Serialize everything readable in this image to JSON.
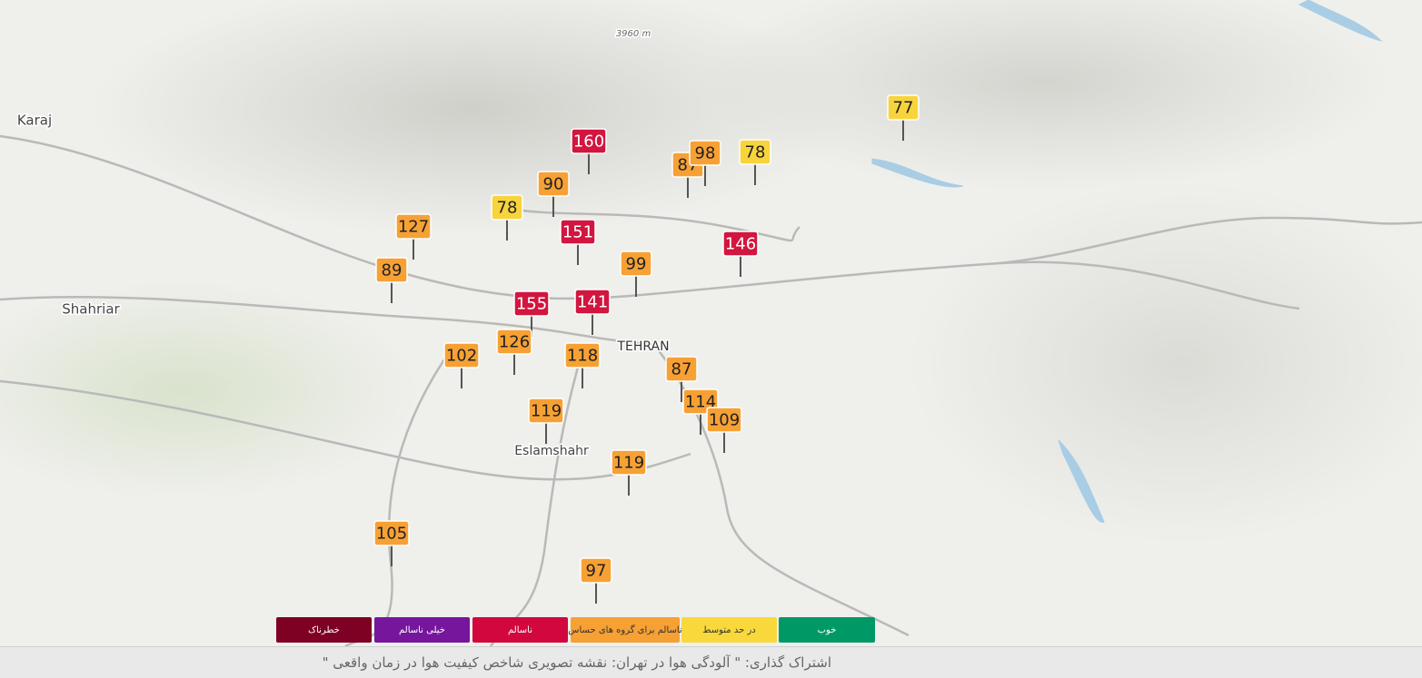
{
  "map": {
    "labels": [
      "Karaj",
      "Shahriar",
      "TEHRAN",
      "Eslamshahr",
      "3960 m"
    ],
    "markers": [
      {
        "value": 77,
        "color": "#f8d43c"
      },
      {
        "value": 160,
        "color": "#d2163f"
      },
      {
        "value": 87,
        "color": "#f7a135"
      },
      {
        "value": 98,
        "color": "#f7a135"
      },
      {
        "value": 78,
        "color": "#f8d43c"
      },
      {
        "value": 90,
        "color": "#f7a135"
      },
      {
        "value": 78,
        "color": "#f8d43c"
      },
      {
        "value": 127,
        "color": "#f7a135"
      },
      {
        "value": 151,
        "color": "#d2163f"
      },
      {
        "value": 146,
        "color": "#d2163f"
      },
      {
        "value": 99,
        "color": "#f7a135"
      },
      {
        "value": 89,
        "color": "#f7a135"
      },
      {
        "value": 155,
        "color": "#d2163f"
      },
      {
        "value": 141,
        "color": "#d2163f"
      },
      {
        "value": 126,
        "color": "#f7a135"
      },
      {
        "value": 118,
        "color": "#f7a135"
      },
      {
        "value": 102,
        "color": "#f7a135"
      },
      {
        "value": 87,
        "color": "#f7a135"
      },
      {
        "value": 114,
        "color": "#f7a135"
      },
      {
        "value": 109,
        "color": "#f7a135"
      },
      {
        "value": 119,
        "color": "#f7a135"
      },
      {
        "value": 119,
        "color": "#f7a135"
      },
      {
        "value": 105,
        "color": "#f7a135"
      },
      {
        "value": 97,
        "color": "#f7a135"
      }
    ]
  },
  "legend": [
    {
      "label": "خطرناک",
      "color": "#7e0023"
    },
    {
      "label": "خیلی ناسالم",
      "color": "#76169c"
    },
    {
      "label": "ناسالم",
      "color": "#d2073e"
    },
    {
      "label": "ناسالم برای گروه های حساس",
      "color": "#f7a034"
    },
    {
      "label": "در حد متوسط",
      "color": "#f9d83c"
    },
    {
      "label": "خوب",
      "color": "#009966"
    }
  ],
  "footer": {
    "text": "اشتراک گذاری: \" آلودگی هوا در تهران: نقشه تصویری شاخص کیفیت هوا در زمان واقعی \""
  }
}
